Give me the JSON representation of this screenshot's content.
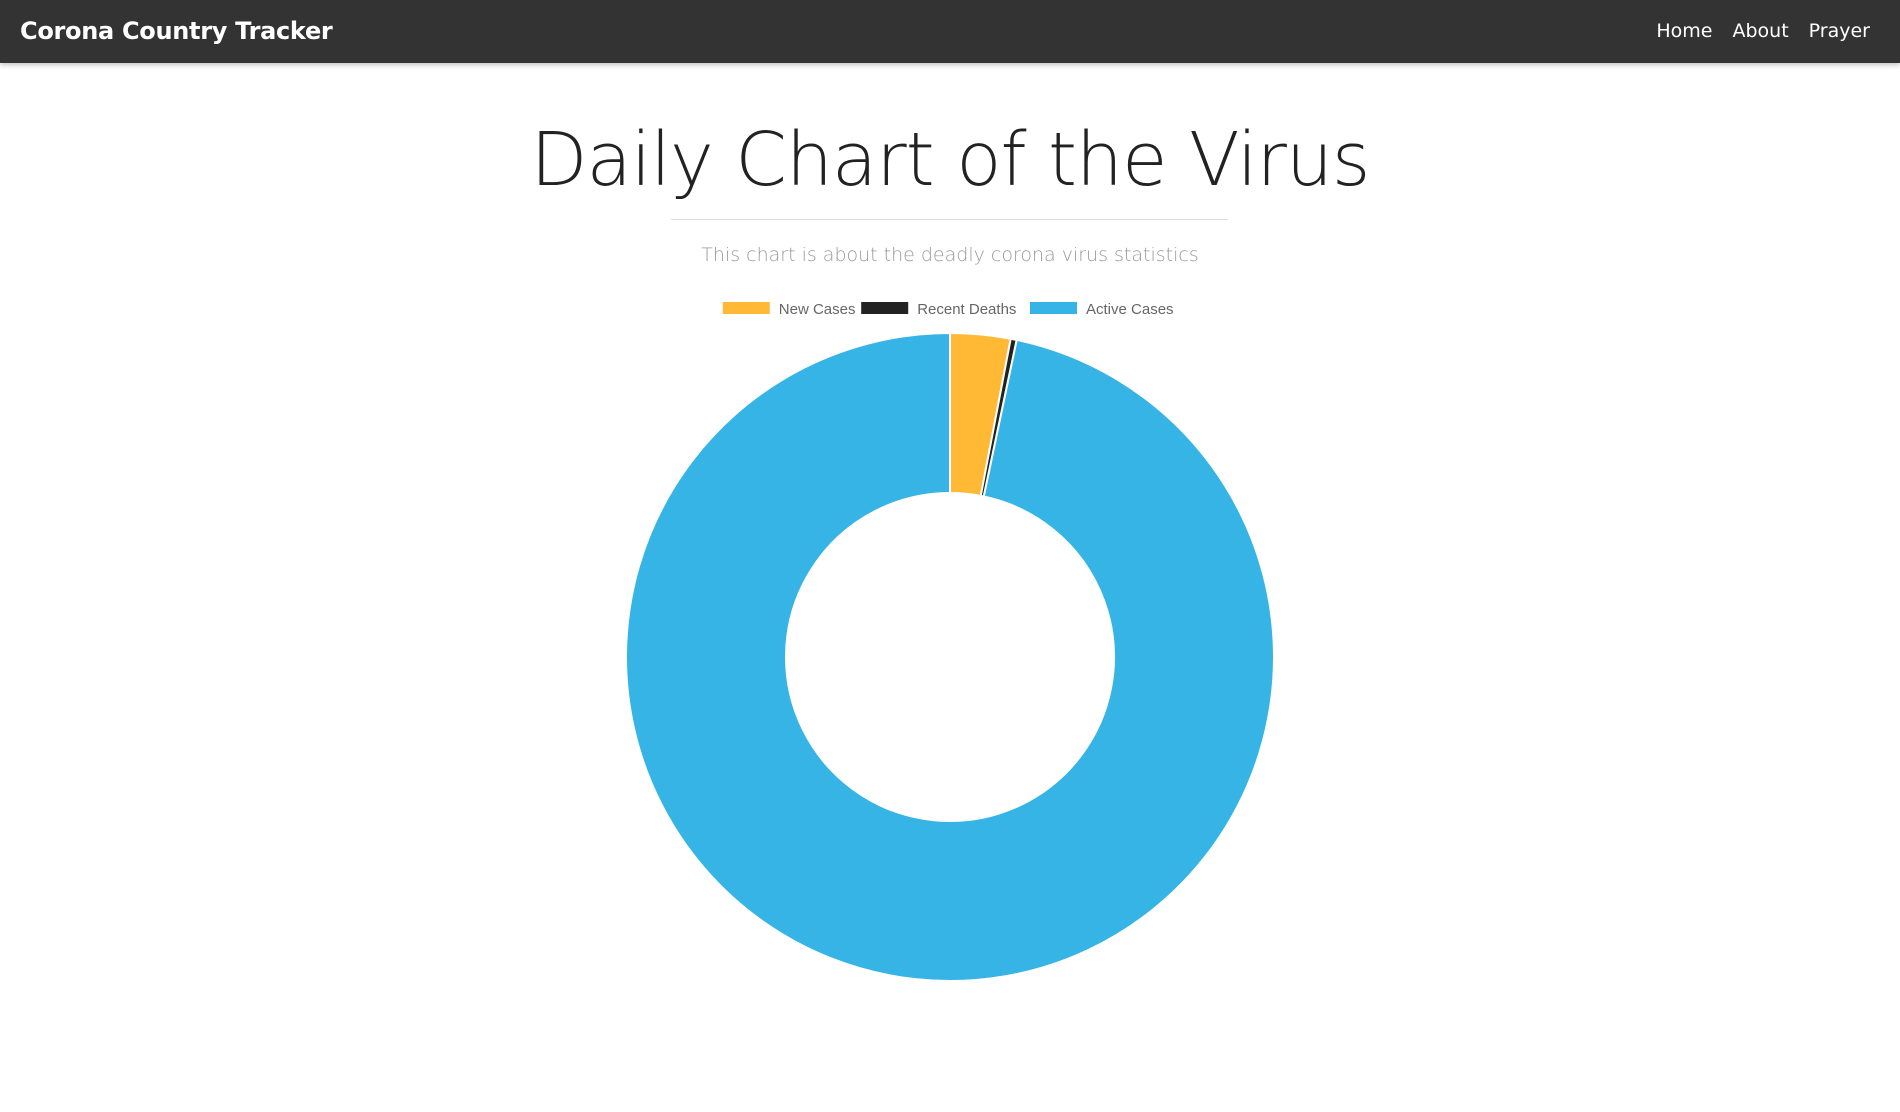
{
  "navbar": {
    "brand": "Corona Country Tracker",
    "links": [
      "Home",
      "About",
      "Prayer"
    ],
    "background": "#333333"
  },
  "main": {
    "title": "Daily Chart of the Virus",
    "subtitle": "This chart is about the deadly corona virus statistics"
  },
  "chart_data": {
    "type": "pie",
    "variant": "doughnut",
    "labels": [
      "New Cases",
      "Recent Deaths",
      "Active Cases"
    ],
    "values": [
      3.0,
      0.3,
      96.7
    ],
    "colors": [
      "#ffb935",
      "#222222",
      "#36b4e5"
    ],
    "legend_position": "top",
    "title": ""
  }
}
